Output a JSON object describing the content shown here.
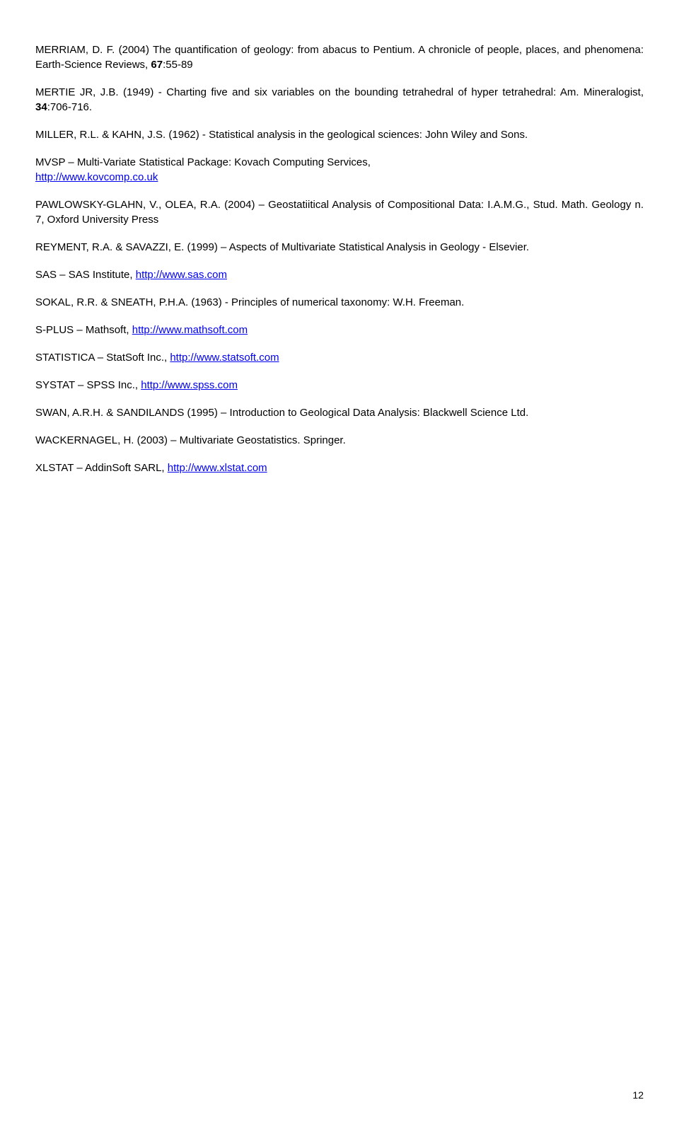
{
  "references": {
    "merriam": {
      "prefix": "MERRIAM, D. F. (2004) The quantification of geology: from abacus to Pentium. A chronicle of people, places, and phenomena: Earth-Science Reviews, ",
      "bold": "67",
      "suffix": ":55-89"
    },
    "mertie": {
      "prefix": "MERTIE JR, J.B. (1949) - Charting five and six variables on the bounding tetrahedral of hyper tetrahedral: Am. Mineralogist, ",
      "bold": "34",
      "suffix": ":706-716."
    },
    "miller": "MILLER, R.L. & KAHN, J.S. (1962) - Statistical analysis in the geological sciences: John Wiley and Sons.",
    "mvsp": {
      "w1": "MVSP",
      "w2": "–",
      "w3": "Multi-Variate",
      "w4": "Statistical",
      "w5": "Package:",
      "w6": "Kovach",
      "w7": "Computing",
      "w8": "Services,",
      "link": "http://www.kovcomp.co.uk"
    },
    "pawlowsky": "PAWLOWSKY-GLAHN, V., OLEA, R.A. (2004) – Geostatiitical Analysis of Compositional Data: I.A.M.G., Stud. Math. Geology n. 7, Oxford University Press",
    "reyment": "REYMENT, R.A. & SAVAZZI, E. (1999) – Aspects of Multivariate Statistical Analysis in Geology  - Elsevier.",
    "sas": {
      "prefix": "SAS – SAS Institute, ",
      "link": "http://www.sas.com"
    },
    "sokal": "SOKAL, R.R. & SNEATH, P.H.A. (1963) - Principles of numerical taxonomy: W.H. Freeman.",
    "splus": {
      "prefix": "S-PLUS  – Mathsoft, ",
      "link": "http://www.mathsoft.com"
    },
    "statistica": {
      "prefix": "STATISTICA  – StatSoft Inc., ",
      "link": "http://www.statsoft.com"
    },
    "systat": {
      "prefix": "SYSTAT  – SPSS Inc., ",
      "link": "http://www.spss.com"
    },
    "swan": "SWAN, A.R.H. & SANDILANDS (1995) – Introduction to Geological Data Analysis: Blackwell Science Ltd.",
    "wackernagel": "WACKERNAGEL, H. (2003) – Multivariate Geostatistics.  Springer.",
    "xlstat": {
      "prefix": "XLSTAT – AddinSoft SARL, ",
      "link": "http://www.xlstat.com"
    }
  },
  "page_number": "12"
}
